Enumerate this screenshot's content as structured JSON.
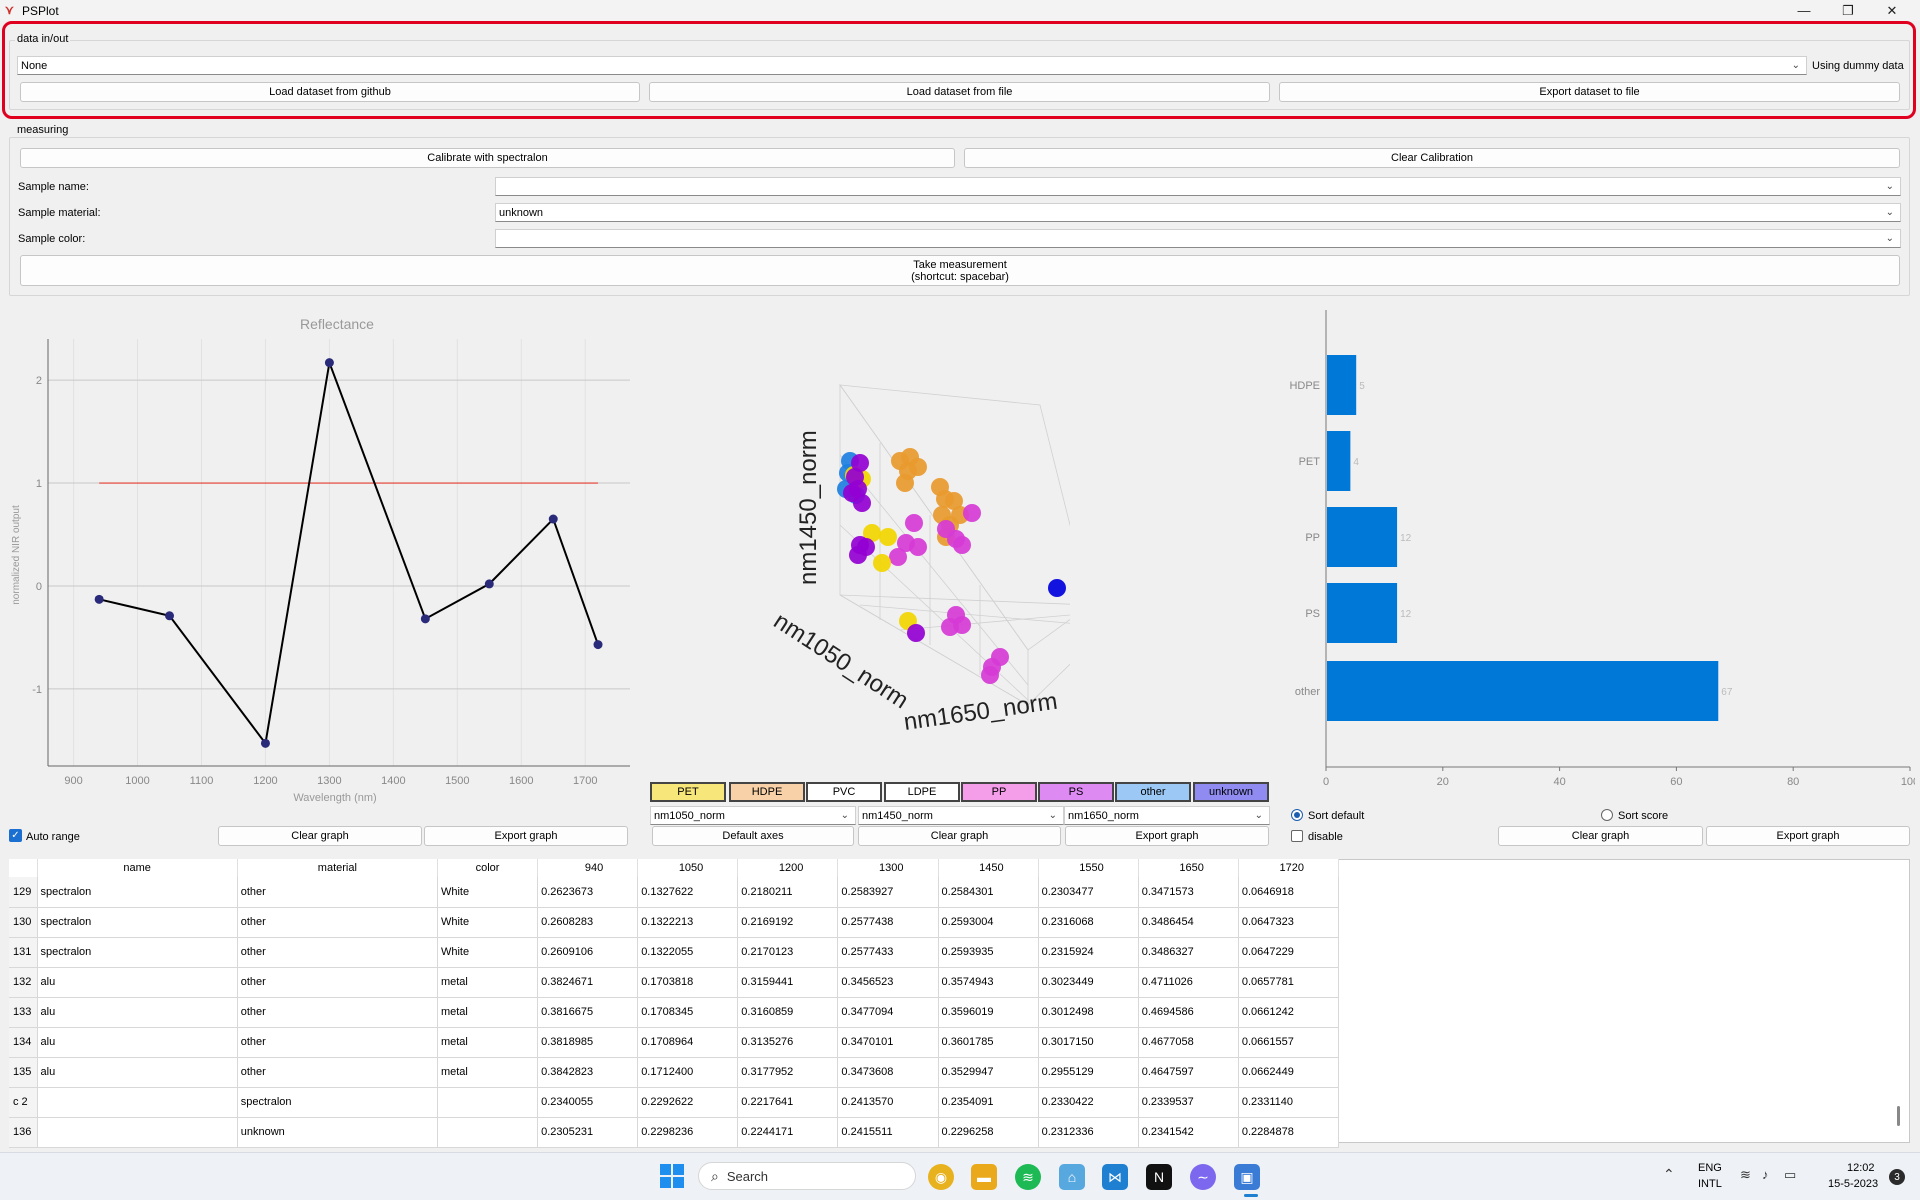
{
  "window": {
    "title": "PSPlot"
  },
  "data_io": {
    "title": "data in/out",
    "dataset_select": "None",
    "status": "Using dummy data",
    "load_github": "Load dataset from github",
    "load_file": "Load dataset from file",
    "export_file": "Export dataset to file"
  },
  "measuring": {
    "title": "measuring",
    "calibrate": "Calibrate with spectralon",
    "clear_calibration": "Clear Calibration",
    "sample_name_label": "Sample name:",
    "sample_name_value": "",
    "sample_material_label": "Sample material:",
    "sample_material_value": "unknown",
    "sample_color_label": "Sample color:",
    "sample_color_value": "",
    "take_measurement_line1": "Take measurement",
    "take_measurement_line2": "(shortcut: spacebar)"
  },
  "reflectance": {
    "chart_data": {
      "type": "line",
      "title": "Reflectance",
      "xlabel": "Wavelength (nm)",
      "ylabel": "normalized NIR output",
      "x": [
        940,
        1050,
        1200,
        1300,
        1450,
        1550,
        1650,
        1720
      ],
      "series": [
        {
          "values": [
            -0.13,
            -0.29,
            -1.53,
            2.17,
            -0.32,
            0.02,
            0.65,
            -0.57
          ]
        }
      ],
      "reference_line": {
        "x": [
          940,
          1720
        ],
        "y": 1
      },
      "xlim": [
        860,
        1770
      ],
      "ylim": [
        -1.75,
        2.4
      ],
      "xticks": [
        900,
        1000,
        1100,
        1200,
        1300,
        1400,
        1500,
        1600,
        1700
      ],
      "yticks": [
        -1,
        0,
        1,
        2
      ],
      "grid": true
    },
    "auto_range": "Auto range",
    "clear_graph": "Clear graph",
    "export_graph": "Export graph"
  },
  "scatter3d": {
    "x_axis_label": "nm1050_norm",
    "y_axis_label": "nm1450_norm",
    "z_axis_label": "nm1650_norm",
    "legend": [
      {
        "label": "PET",
        "color": "#f7e67a"
      },
      {
        "label": "HDPE",
        "color": "#f8d1a8"
      },
      {
        "label": "PVC",
        "color": "#ffffff"
      },
      {
        "label": "LDPE",
        "color": "#ffffff"
      },
      {
        "label": "PP",
        "color": "#f49de8"
      },
      {
        "label": "PS",
        "color": "#dd8af2"
      },
      {
        "label": "other",
        "color": "#9bc8f5"
      },
      {
        "label": "unknown",
        "color": "#8f8bf0"
      }
    ],
    "axis_select_x": "nm1050_norm",
    "axis_select_y": "nm1450_norm",
    "axis_select_z": "nm1650_norm",
    "default_axes": "Default axes",
    "clear_graph": "Clear graph",
    "export_graph": "Export graph"
  },
  "bar": {
    "chart_data": {
      "type": "bar",
      "orientation": "horizontal",
      "categories": [
        "HDPE",
        "PET",
        "PP",
        "PS",
        "other"
      ],
      "values": [
        5,
        4,
        12,
        12,
        67
      ],
      "xlim": [
        0,
        100
      ],
      "xticks": [
        0,
        20,
        40,
        60,
        80,
        100
      ],
      "color": "#0078d7"
    },
    "sort_default": "Sort default",
    "sort_score": "Sort score",
    "disable": "disable",
    "clear_graph": "Clear graph",
    "export_graph": "Export graph"
  },
  "table": {
    "headers": [
      "name",
      "material",
      "color",
      "940",
      "1050",
      "1200",
      "1300",
      "1450",
      "1550",
      "1650",
      "1720"
    ],
    "rows": [
      {
        "id": "129",
        "cells": [
          "spectralon",
          "other",
          "White",
          "0.2623673",
          "0.1327622",
          "0.2180211",
          "0.2583927",
          "0.2584301",
          "0.2303477",
          "0.3471573",
          "0.0646918"
        ]
      },
      {
        "id": "130",
        "cells": [
          "spectralon",
          "other",
          "White",
          "0.2608283",
          "0.1322213",
          "0.2169192",
          "0.2577438",
          "0.2593004",
          "0.2316068",
          "0.3486454",
          "0.0647323"
        ]
      },
      {
        "id": "131",
        "cells": [
          "spectralon",
          "other",
          "White",
          "0.2609106",
          "0.1322055",
          "0.2170123",
          "0.2577433",
          "0.2593935",
          "0.2315924",
          "0.3486327",
          "0.0647229"
        ]
      },
      {
        "id": "132",
        "cells": [
          "alu",
          "other",
          "metal",
          "0.3824671",
          "0.1703818",
          "0.3159441",
          "0.3456523",
          "0.3574943",
          "0.3023449",
          "0.4711026",
          "0.0657781"
        ]
      },
      {
        "id": "133",
        "cells": [
          "alu",
          "other",
          "metal",
          "0.3816675",
          "0.1708345",
          "0.3160859",
          "0.3477094",
          "0.3596019",
          "0.3012498",
          "0.4694586",
          "0.0661242"
        ]
      },
      {
        "id": "134",
        "cells": [
          "alu",
          "other",
          "metal",
          "0.3818985",
          "0.1708964",
          "0.3135276",
          "0.3470101",
          "0.3601785",
          "0.3017150",
          "0.4677058",
          "0.0661557"
        ]
      },
      {
        "id": "135",
        "cells": [
          "alu",
          "other",
          "metal",
          "0.3842823",
          "0.1712400",
          "0.3177952",
          "0.3473608",
          "0.3529947",
          "0.2955129",
          "0.4647597",
          "0.0662449"
        ]
      },
      {
        "id": "c 2",
        "cells": [
          "",
          "spectralon",
          "",
          "0.2340055",
          "0.2292622",
          "0.2217641",
          "0.2413570",
          "0.2354091",
          "0.2330422",
          "0.2339537",
          "0.2331140"
        ]
      },
      {
        "id": "136",
        "cells": [
          "",
          "unknown",
          "",
          "0.2305231",
          "0.2298236",
          "0.2244171",
          "0.2415511",
          "0.2296258",
          "0.2312336",
          "0.2341542",
          "0.2284878"
        ]
      }
    ]
  },
  "taskbar": {
    "search": "Search",
    "lang1": "ENG",
    "lang2": "INTL",
    "time": "12:02",
    "date": "15-5-2023",
    "notifications": "3"
  }
}
